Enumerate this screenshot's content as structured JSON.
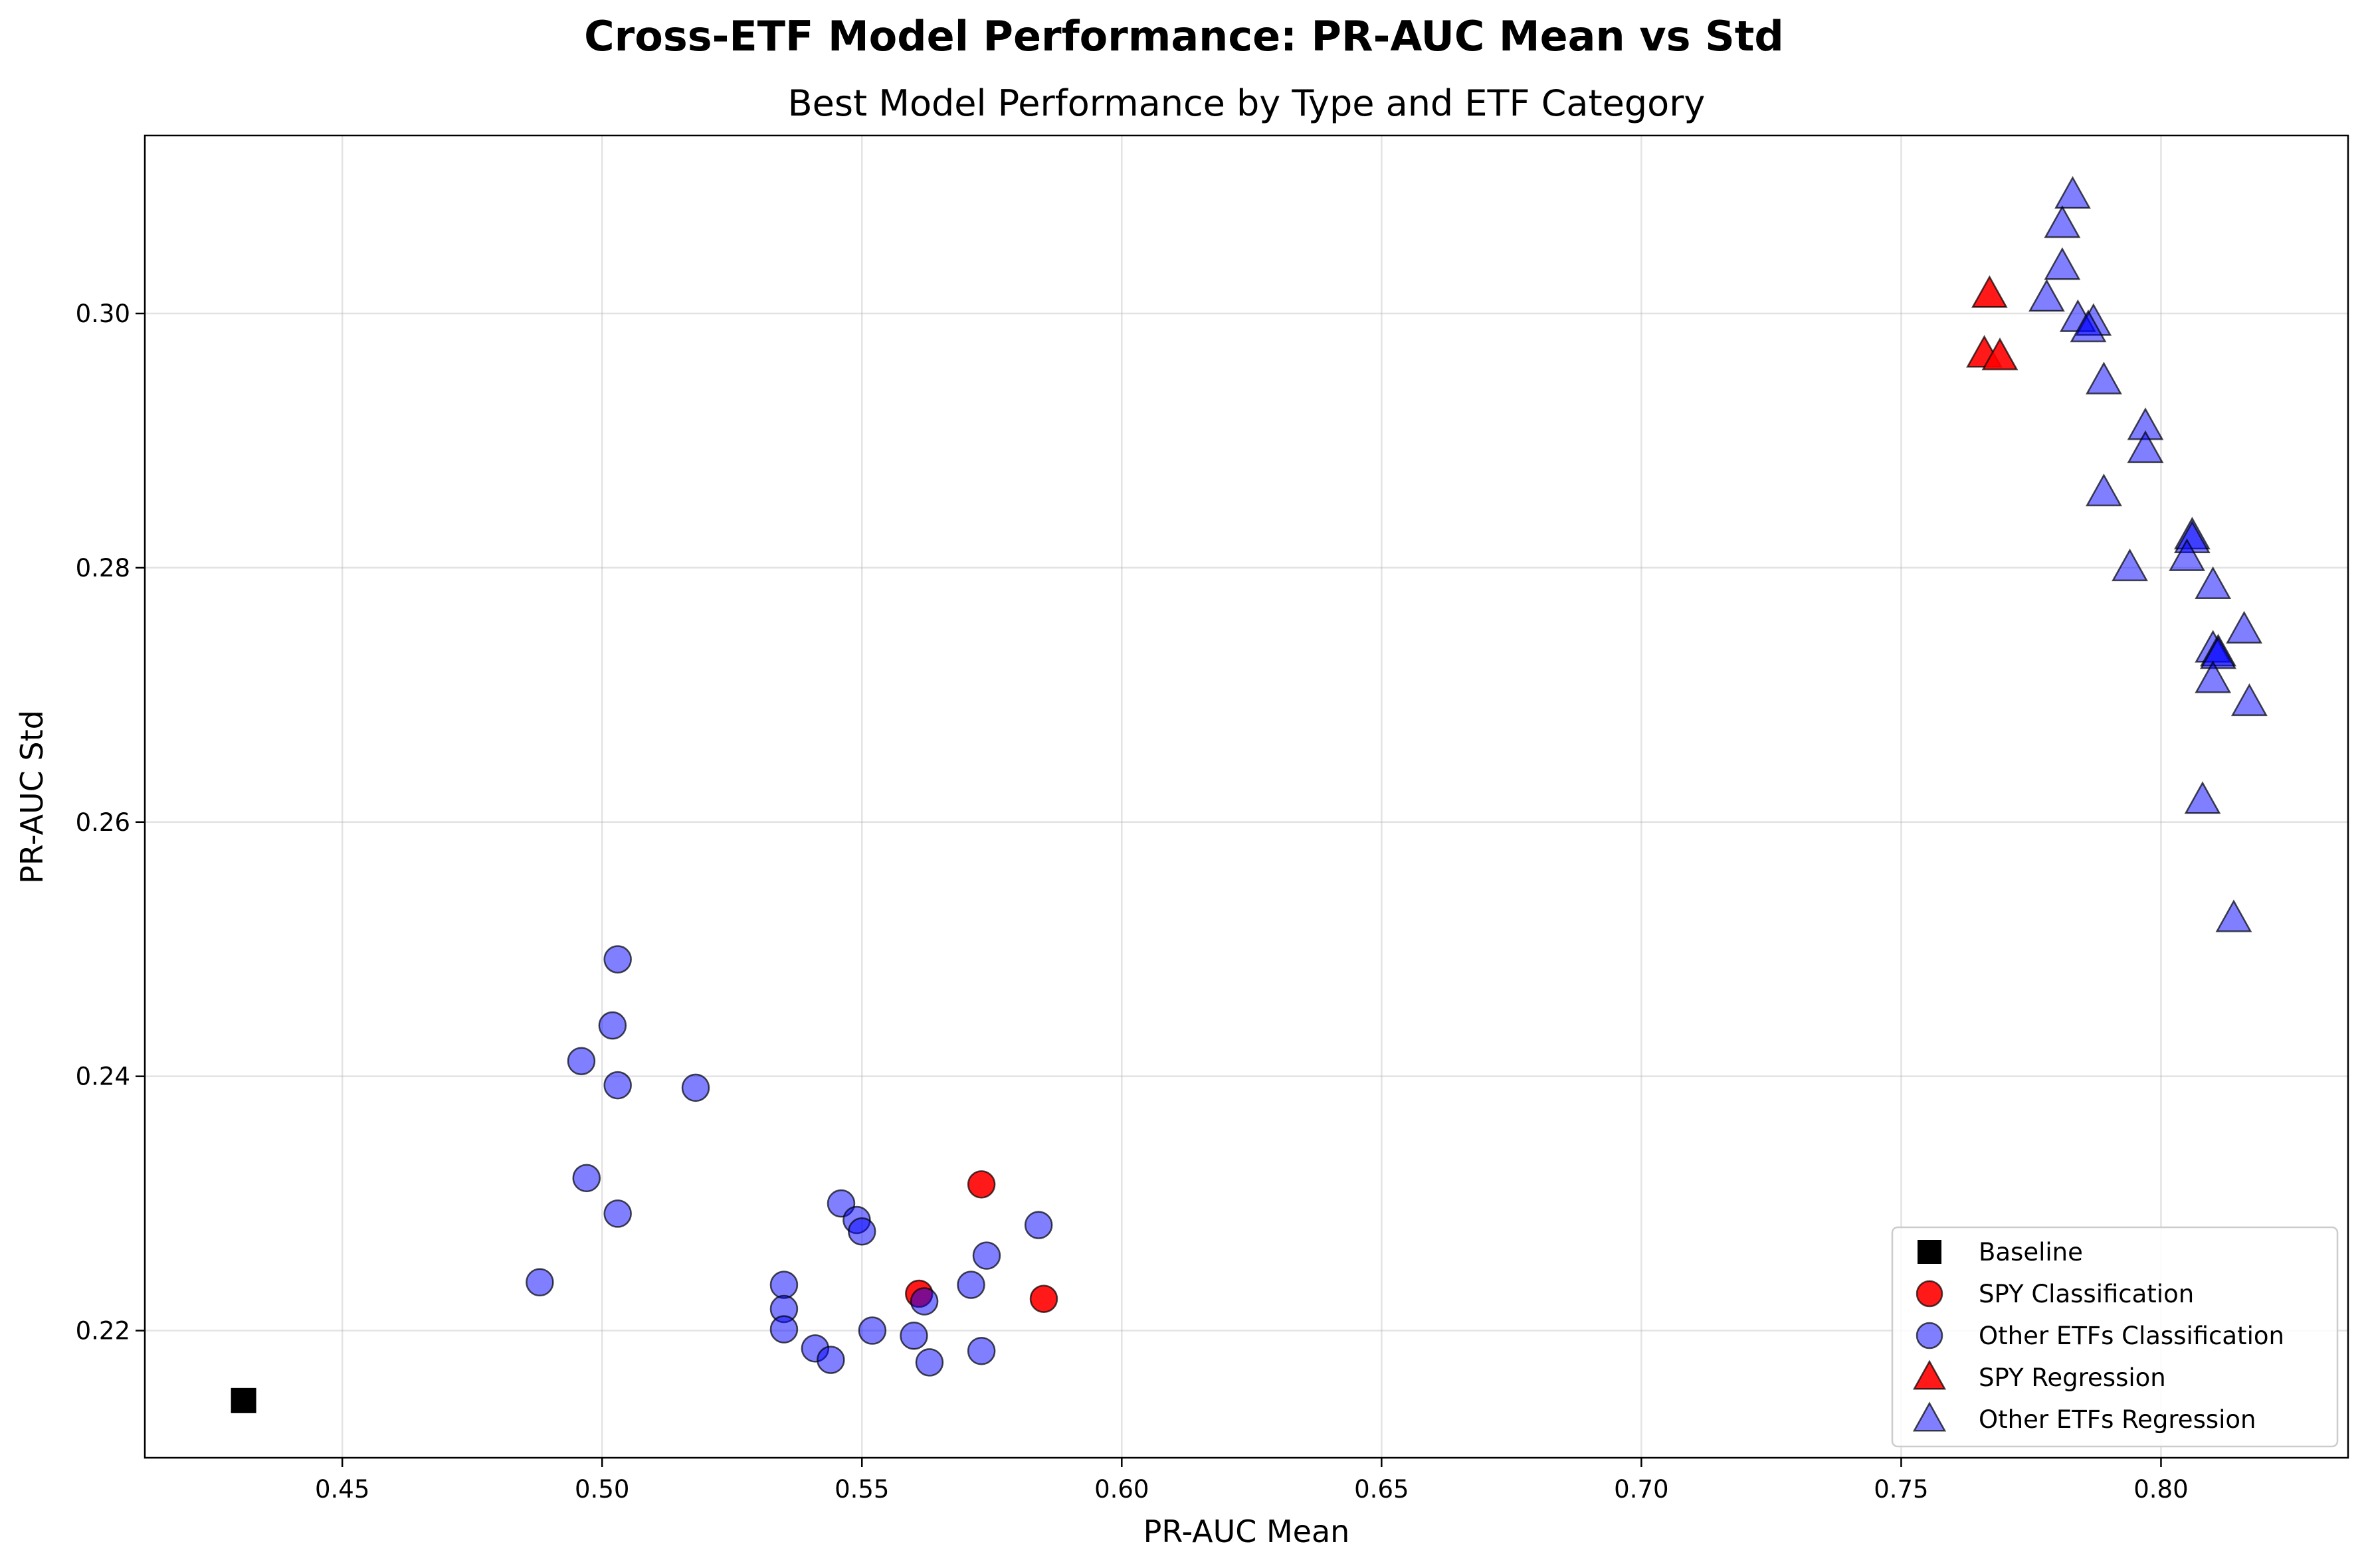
{
  "chart_data": {
    "type": "scatter",
    "suptitle": "Cross-ETF Model Performance: PR-AUC Mean vs Std",
    "title": "Best Model Performance by Type and ETF Category",
    "xlabel": "PR-AUC Mean",
    "ylabel": "PR-AUC Std",
    "xlim": [
      0.412,
      0.836
    ],
    "ylim": [
      0.21,
      0.314
    ],
    "xticks": [
      0.45,
      0.5,
      0.55,
      0.6,
      0.65,
      0.7,
      0.75,
      0.8
    ],
    "xtick_labels": [
      "0.45",
      "0.50",
      "0.55",
      "0.60",
      "0.65",
      "0.70",
      "0.75",
      "0.80"
    ],
    "yticks": [
      0.22,
      0.24,
      0.26,
      0.28,
      0.3
    ],
    "ytick_labels": [
      "0.22",
      "0.24",
      "0.26",
      "0.28",
      "0.30"
    ],
    "grid": true,
    "legend_position": "lower-right",
    "series": [
      {
        "name": "Baseline",
        "marker": "square",
        "color": "#000000",
        "alpha": 1.0,
        "points": [
          [
            0.431,
            0.2145
          ]
        ]
      },
      {
        "name": "SPY Classification",
        "marker": "circle",
        "color": "#ff0000",
        "alpha": 0.9,
        "points": [
          [
            0.573,
            0.2315
          ],
          [
            0.561,
            0.2229
          ],
          [
            0.585,
            0.2225
          ]
        ]
      },
      {
        "name": "Other ETFs Classification",
        "marker": "circle",
        "color": "#0000ff",
        "alpha": 0.5,
        "points": [
          [
            0.503,
            0.2492
          ],
          [
            0.502,
            0.244
          ],
          [
            0.496,
            0.2412
          ],
          [
            0.503,
            0.2393
          ],
          [
            0.518,
            0.2391
          ],
          [
            0.497,
            0.232
          ],
          [
            0.503,
            0.2292
          ],
          [
            0.488,
            0.2238
          ],
          [
            0.535,
            0.2236
          ],
          [
            0.535,
            0.2217
          ],
          [
            0.535,
            0.2201
          ],
          [
            0.541,
            0.2186
          ],
          [
            0.544,
            0.2177
          ],
          [
            0.546,
            0.23
          ],
          [
            0.549,
            0.2287
          ],
          [
            0.55,
            0.2278
          ],
          [
            0.552,
            0.22
          ],
          [
            0.56,
            0.2196
          ],
          [
            0.562,
            0.2223
          ],
          [
            0.563,
            0.2175
          ],
          [
            0.571,
            0.2236
          ],
          [
            0.573,
            0.2184
          ],
          [
            0.574,
            0.2259
          ],
          [
            0.584,
            0.2283
          ]
        ]
      },
      {
        "name": "SPY Regression",
        "marker": "triangle",
        "color": "#ff0000",
        "alpha": 0.9,
        "points": [
          [
            0.767,
            0.3015
          ],
          [
            0.766,
            0.2968
          ],
          [
            0.769,
            0.2966
          ]
        ]
      },
      {
        "name": "Other ETFs Regression",
        "marker": "triangle",
        "color": "#0000ff",
        "alpha": 0.5,
        "points": [
          [
            0.783,
            0.3093
          ],
          [
            0.781,
            0.307
          ],
          [
            0.781,
            0.3037
          ],
          [
            0.778,
            0.3012
          ],
          [
            0.784,
            0.2996
          ],
          [
            0.787,
            0.2993
          ],
          [
            0.786,
            0.2988
          ],
          [
            0.789,
            0.2947
          ],
          [
            0.797,
            0.2911
          ],
          [
            0.797,
            0.2893
          ],
          [
            0.789,
            0.2859
          ],
          [
            0.806,
            0.2825
          ],
          [
            0.806,
            0.2822
          ],
          [
            0.805,
            0.2808
          ],
          [
            0.794,
            0.28
          ],
          [
            0.81,
            0.2786
          ],
          [
            0.816,
            0.2751
          ],
          [
            0.81,
            0.2736
          ],
          [
            0.811,
            0.2733
          ],
          [
            0.811,
            0.2731
          ],
          [
            0.81,
            0.2712
          ],
          [
            0.817,
            0.2694
          ],
          [
            0.808,
            0.2617
          ],
          [
            0.814,
            0.2524
          ]
        ]
      }
    ]
  }
}
